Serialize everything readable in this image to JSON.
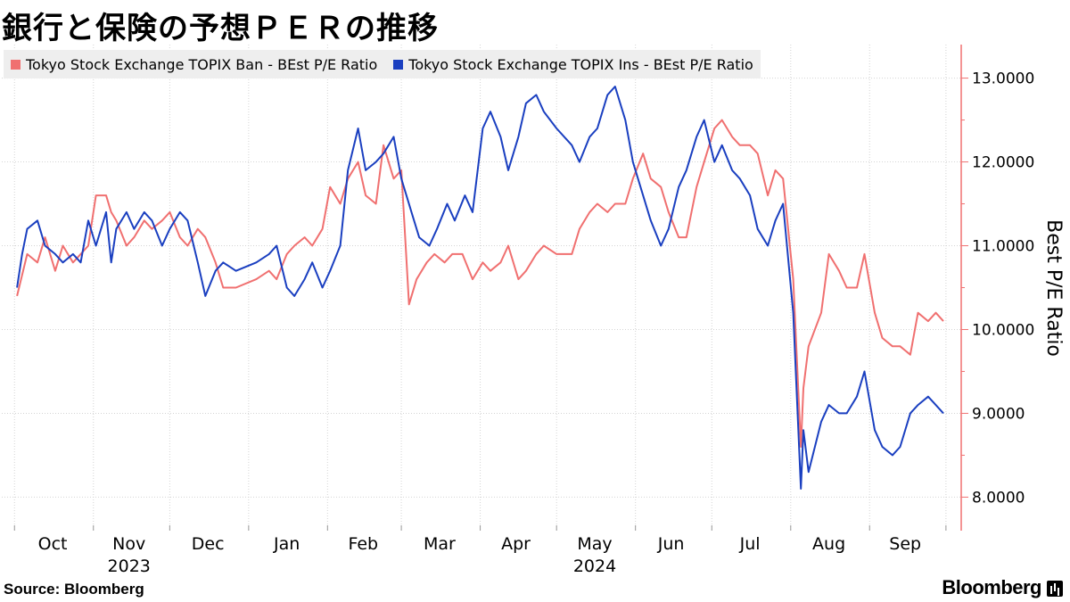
{
  "title": "銀行と保険の予想ＰＥＲの推移",
  "source": "Source:  Bloomberg",
  "brand": "Bloomberg",
  "chart_data": {
    "type": "line",
    "ylabel": "Best P/E Ratio",
    "ylim": [
      7.6,
      13.4
    ],
    "yticks": [
      8,
      9,
      10,
      11,
      12,
      13
    ],
    "ytick_labels": [
      "8.0000",
      "9.0000",
      "10.0000",
      "11.0000",
      "12.0000",
      "13.0000"
    ],
    "month_labels": [
      "Oct",
      "Nov",
      "Dec",
      "Jan",
      "Feb",
      "Mar",
      "Apr",
      "May",
      "Jun",
      "Jul",
      "Aug",
      "Sep"
    ],
    "year_labels": [
      "2023",
      "2024"
    ],
    "grid": true,
    "legend_position": "top-left",
    "series": [
      {
        "name": "Tokyo Stock Exchange TOPIX Ban - BEst P/E Ratio",
        "color": "#f07070",
        "points": [
          [
            "2023-10-02",
            10.4
          ],
          [
            "2023-10-06",
            10.9
          ],
          [
            "2023-10-10",
            10.8
          ],
          [
            "2023-10-13",
            11.1
          ],
          [
            "2023-10-17",
            10.7
          ],
          [
            "2023-10-20",
            11.0
          ],
          [
            "2023-10-24",
            10.8
          ],
          [
            "2023-10-27",
            10.9
          ],
          [
            "2023-10-30",
            11.0
          ],
          [
            "2023-11-02",
            11.6
          ],
          [
            "2023-11-06",
            11.6
          ],
          [
            "2023-11-08",
            11.4
          ],
          [
            "2023-11-10",
            11.3
          ],
          [
            "2023-11-14",
            11.0
          ],
          [
            "2023-11-17",
            11.1
          ],
          [
            "2023-11-21",
            11.3
          ],
          [
            "2023-11-24",
            11.2
          ],
          [
            "2023-11-28",
            11.3
          ],
          [
            "2023-12-01",
            11.4
          ],
          [
            "2023-12-05",
            11.1
          ],
          [
            "2023-12-08",
            11.0
          ],
          [
            "2023-12-12",
            11.2
          ],
          [
            "2023-12-15",
            11.1
          ],
          [
            "2023-12-19",
            10.8
          ],
          [
            "2023-12-22",
            10.5
          ],
          [
            "2023-12-27",
            10.5
          ],
          [
            "2024-01-04",
            10.6
          ],
          [
            "2024-01-09",
            10.7
          ],
          [
            "2024-01-12",
            10.6
          ],
          [
            "2024-01-16",
            10.9
          ],
          [
            "2024-01-19",
            11.0
          ],
          [
            "2024-01-23",
            11.1
          ],
          [
            "2024-01-26",
            11.0
          ],
          [
            "2024-01-30",
            11.2
          ],
          [
            "2024-02-02",
            11.7
          ],
          [
            "2024-02-06",
            11.5
          ],
          [
            "2024-02-09",
            11.8
          ],
          [
            "2024-02-13",
            12.0
          ],
          [
            "2024-02-16",
            11.6
          ],
          [
            "2024-02-20",
            11.5
          ],
          [
            "2024-02-23",
            12.2
          ],
          [
            "2024-02-27",
            11.8
          ],
          [
            "2024-03-01",
            11.9
          ],
          [
            "2024-03-04",
            10.3
          ],
          [
            "2024-03-07",
            10.6
          ],
          [
            "2024-03-11",
            10.8
          ],
          [
            "2024-03-14",
            10.9
          ],
          [
            "2024-03-18",
            10.8
          ],
          [
            "2024-03-21",
            10.9
          ],
          [
            "2024-03-25",
            10.9
          ],
          [
            "2024-03-29",
            10.6
          ],
          [
            "2024-04-02",
            10.8
          ],
          [
            "2024-04-05",
            10.7
          ],
          [
            "2024-04-09",
            10.8
          ],
          [
            "2024-04-12",
            11.0
          ],
          [
            "2024-04-16",
            10.6
          ],
          [
            "2024-04-19",
            10.7
          ],
          [
            "2024-04-23",
            10.9
          ],
          [
            "2024-04-26",
            11.0
          ],
          [
            "2024-05-01",
            10.9
          ],
          [
            "2024-05-07",
            10.9
          ],
          [
            "2024-05-10",
            11.2
          ],
          [
            "2024-05-14",
            11.4
          ],
          [
            "2024-05-17",
            11.5
          ],
          [
            "2024-05-21",
            11.4
          ],
          [
            "2024-05-24",
            11.5
          ],
          [
            "2024-05-28",
            11.5
          ],
          [
            "2024-05-31",
            11.8
          ],
          [
            "2024-06-04",
            12.1
          ],
          [
            "2024-06-07",
            11.8
          ],
          [
            "2024-06-11",
            11.7
          ],
          [
            "2024-06-14",
            11.4
          ],
          [
            "2024-06-18",
            11.1
          ],
          [
            "2024-06-21",
            11.1
          ],
          [
            "2024-06-25",
            11.7
          ],
          [
            "2024-06-28",
            12.0
          ],
          [
            "2024-07-02",
            12.4
          ],
          [
            "2024-07-05",
            12.5
          ],
          [
            "2024-07-09",
            12.3
          ],
          [
            "2024-07-12",
            12.2
          ],
          [
            "2024-07-16",
            12.2
          ],
          [
            "2024-07-19",
            12.1
          ],
          [
            "2024-07-23",
            11.6
          ],
          [
            "2024-07-26",
            11.9
          ],
          [
            "2024-07-29",
            11.8
          ],
          [
            "2024-08-02",
            10.6
          ],
          [
            "2024-08-05",
            8.6
          ],
          [
            "2024-08-06",
            9.3
          ],
          [
            "2024-08-08",
            9.8
          ],
          [
            "2024-08-13",
            10.2
          ],
          [
            "2024-08-16",
            10.9
          ],
          [
            "2024-08-20",
            10.7
          ],
          [
            "2024-08-23",
            10.5
          ],
          [
            "2024-08-27",
            10.5
          ],
          [
            "2024-08-30",
            10.9
          ],
          [
            "2024-09-03",
            10.2
          ],
          [
            "2024-09-06",
            9.9
          ],
          [
            "2024-09-10",
            9.8
          ],
          [
            "2024-09-13",
            9.8
          ],
          [
            "2024-09-17",
            9.7
          ],
          [
            "2024-09-20",
            10.2
          ],
          [
            "2024-09-24",
            10.1
          ],
          [
            "2024-09-27",
            10.2
          ],
          [
            "2024-09-30",
            10.1
          ]
        ]
      },
      {
        "name": "Tokyo Stock Exchange TOPIX Ins - BEst P/E Ratio",
        "color": "#1a3fc0",
        "points": [
          [
            "2023-10-02",
            10.5
          ],
          [
            "2023-10-04",
            10.9
          ],
          [
            "2023-10-06",
            11.2
          ],
          [
            "2023-10-10",
            11.3
          ],
          [
            "2023-10-13",
            11.0
          ],
          [
            "2023-10-17",
            10.9
          ],
          [
            "2023-10-20",
            10.8
          ],
          [
            "2023-10-24",
            10.9
          ],
          [
            "2023-10-27",
            10.8
          ],
          [
            "2023-10-30",
            11.3
          ],
          [
            "2023-11-02",
            11.0
          ],
          [
            "2023-11-06",
            11.4
          ],
          [
            "2023-11-08",
            10.8
          ],
          [
            "2023-11-10",
            11.2
          ],
          [
            "2023-11-14",
            11.4
          ],
          [
            "2023-11-17",
            11.2
          ],
          [
            "2023-11-21",
            11.4
          ],
          [
            "2023-11-24",
            11.3
          ],
          [
            "2023-11-28",
            11.0
          ],
          [
            "2023-12-01",
            11.2
          ],
          [
            "2023-12-05",
            11.4
          ],
          [
            "2023-12-08",
            11.3
          ],
          [
            "2023-12-12",
            10.8
          ],
          [
            "2023-12-15",
            10.4
          ],
          [
            "2023-12-19",
            10.7
          ],
          [
            "2023-12-22",
            10.8
          ],
          [
            "2023-12-27",
            10.7
          ],
          [
            "2024-01-04",
            10.8
          ],
          [
            "2024-01-09",
            10.9
          ],
          [
            "2024-01-12",
            11.0
          ],
          [
            "2024-01-16",
            10.5
          ],
          [
            "2024-01-19",
            10.4
          ],
          [
            "2024-01-23",
            10.6
          ],
          [
            "2024-01-26",
            10.8
          ],
          [
            "2024-01-30",
            10.5
          ],
          [
            "2024-02-02",
            10.7
          ],
          [
            "2024-02-06",
            11.0
          ],
          [
            "2024-02-09",
            11.9
          ],
          [
            "2024-02-13",
            12.4
          ],
          [
            "2024-02-16",
            11.9
          ],
          [
            "2024-02-20",
            12.0
          ],
          [
            "2024-02-23",
            12.1
          ],
          [
            "2024-02-27",
            12.3
          ],
          [
            "2024-03-01",
            11.8
          ],
          [
            "2024-03-05",
            11.4
          ],
          [
            "2024-03-08",
            11.1
          ],
          [
            "2024-03-12",
            11.0
          ],
          [
            "2024-03-15",
            11.2
          ],
          [
            "2024-03-19",
            11.5
          ],
          [
            "2024-03-22",
            11.3
          ],
          [
            "2024-03-26",
            11.6
          ],
          [
            "2024-03-29",
            11.4
          ],
          [
            "2024-04-02",
            12.4
          ],
          [
            "2024-04-05",
            12.6
          ],
          [
            "2024-04-09",
            12.3
          ],
          [
            "2024-04-12",
            11.9
          ],
          [
            "2024-04-16",
            12.3
          ],
          [
            "2024-04-19",
            12.7
          ],
          [
            "2024-04-23",
            12.8
          ],
          [
            "2024-04-26",
            12.6
          ],
          [
            "2024-05-01",
            12.4
          ],
          [
            "2024-05-07",
            12.2
          ],
          [
            "2024-05-10",
            12.0
          ],
          [
            "2024-05-14",
            12.3
          ],
          [
            "2024-05-17",
            12.4
          ],
          [
            "2024-05-21",
            12.8
          ],
          [
            "2024-05-24",
            12.9
          ],
          [
            "2024-05-28",
            12.5
          ],
          [
            "2024-05-31",
            12.0
          ],
          [
            "2024-06-04",
            11.6
          ],
          [
            "2024-06-07",
            11.3
          ],
          [
            "2024-06-11",
            11.0
          ],
          [
            "2024-06-14",
            11.2
          ],
          [
            "2024-06-18",
            11.7
          ],
          [
            "2024-06-21",
            11.9
          ],
          [
            "2024-06-25",
            12.3
          ],
          [
            "2024-06-28",
            12.5
          ],
          [
            "2024-07-02",
            12.0
          ],
          [
            "2024-07-05",
            12.2
          ],
          [
            "2024-07-09",
            11.9
          ],
          [
            "2024-07-12",
            11.8
          ],
          [
            "2024-07-16",
            11.6
          ],
          [
            "2024-07-19",
            11.2
          ],
          [
            "2024-07-23",
            11.0
          ],
          [
            "2024-07-26",
            11.3
          ],
          [
            "2024-07-29",
            11.5
          ],
          [
            "2024-08-02",
            10.2
          ],
          [
            "2024-08-05",
            8.1
          ],
          [
            "2024-08-06",
            8.8
          ],
          [
            "2024-08-08",
            8.3
          ],
          [
            "2024-08-13",
            8.9
          ],
          [
            "2024-08-16",
            9.1
          ],
          [
            "2024-08-20",
            9.0
          ],
          [
            "2024-08-23",
            9.0
          ],
          [
            "2024-08-27",
            9.2
          ],
          [
            "2024-08-30",
            9.5
          ],
          [
            "2024-09-03",
            8.8
          ],
          [
            "2024-09-06",
            8.6
          ],
          [
            "2024-09-10",
            8.5
          ],
          [
            "2024-09-13",
            8.6
          ],
          [
            "2024-09-17",
            9.0
          ],
          [
            "2024-09-20",
            9.1
          ],
          [
            "2024-09-24",
            9.2
          ],
          [
            "2024-09-27",
            9.1
          ],
          [
            "2024-09-30",
            9.0
          ]
        ]
      }
    ]
  }
}
